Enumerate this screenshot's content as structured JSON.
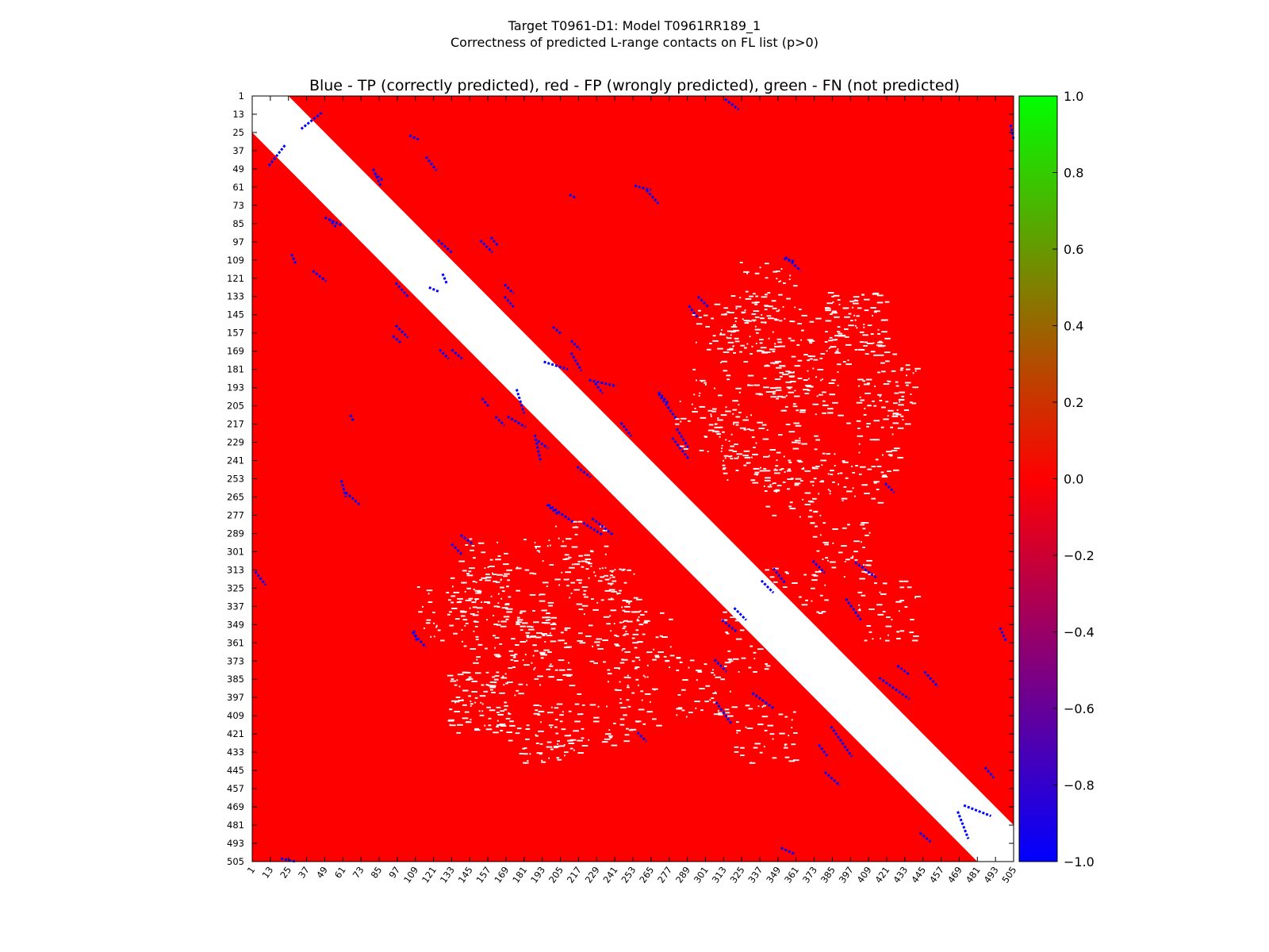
{
  "figure": {
    "title_line1": "Target T0961-D1: Model T0961RR189_1",
    "title_line2": "Correctness of predicted L-range contacts on FL list (p>0)"
  },
  "chart_data": {
    "type": "heatmap",
    "title": "Blue - TP (correctly predicted), red - FP (wrongly predicted), green - FN (not predicted)",
    "xlabel": "",
    "ylabel": "",
    "n_residues": 505,
    "tick_labels": [
      1,
      13,
      25,
      37,
      49,
      61,
      73,
      85,
      97,
      109,
      121,
      133,
      145,
      157,
      169,
      181,
      193,
      205,
      217,
      229,
      241,
      253,
      265,
      277,
      289,
      301,
      313,
      325,
      337,
      349,
      361,
      373,
      385,
      397,
      409,
      421,
      433,
      445,
      457,
      469,
      481,
      493,
      505
    ],
    "xlim": [
      1,
      505
    ],
    "ylim": [
      1,
      505
    ],
    "y_axis_inverted": true,
    "excluded_diagonal_band": 24,
    "value_meaning": {
      "-1": "TP (correctly predicted)",
      "0": "FP (wrongly predicted)",
      "1": "FN (not predicted)"
    },
    "colors": {
      "tp": "#0000ff",
      "fp": "#ff0000",
      "fn": "#00ff00",
      "empty": "#ffffff"
    },
    "background_value": 0,
    "colorbar": {
      "range": [
        -1.0,
        1.0
      ],
      "ticks": [
        "1.0",
        "0.8",
        "0.6",
        "0.4",
        "0.2",
        "0.0",
        "−0.2",
        "−0.4",
        "−0.6",
        "−0.8",
        "−1.0"
      ],
      "colormap": [
        "#0000ff",
        "#ff0000",
        "#00ff00"
      ]
    },
    "tp_segments": [
      [
        12,
        47,
        23,
        33
      ],
      [
        27,
        105,
        30,
        112
      ],
      [
        41,
        116,
        50,
        123
      ],
      [
        49,
        81,
        60,
        86
      ],
      [
        60,
        254,
        63,
        265
      ],
      [
        66,
        211,
        68,
        215
      ],
      [
        82,
        52,
        88,
        57
      ],
      [
        94,
        159,
        100,
        164
      ],
      [
        108,
        353,
        110,
        360
      ],
      [
        118,
        127,
        125,
        130
      ],
      [
        124,
        96,
        133,
        104
      ],
      [
        133,
        168,
        140,
        174
      ],
      [
        139,
        290,
        147,
        296
      ],
      [
        152,
        96,
        160,
        104
      ],
      [
        162,
        212,
        168,
        218
      ],
      [
        168,
        125,
        174,
        131
      ],
      [
        176,
        194,
        181,
        210
      ],
      [
        188,
        224,
        192,
        242
      ],
      [
        196,
        270,
        204,
        277
      ],
      [
        200,
        153,
        206,
        158
      ],
      [
        212,
        170,
        219,
        182
      ],
      [
        226,
        279,
        240,
        290
      ],
      [
        228,
        190,
        233,
        197
      ],
      [
        245,
        216,
        252,
        225
      ],
      [
        262,
        63,
        270,
        72
      ],
      [
        270,
        197,
        282,
        214
      ],
      [
        282,
        220,
        290,
        233
      ],
      [
        296,
        133,
        303,
        140
      ],
      [
        308,
        400,
        318,
        414
      ],
      [
        314,
        3,
        323,
        10
      ],
      [
        320,
        338,
        328,
        346
      ],
      [
        346,
        312,
        354,
        322
      ],
      [
        354,
        107,
        364,
        116
      ],
      [
        372,
        307,
        380,
        315
      ],
      [
        384,
        416,
        398,
        436
      ],
      [
        394,
        332,
        404,
        346
      ],
      [
        420,
        256,
        426,
        262
      ],
      [
        428,
        376,
        436,
        382
      ],
      [
        446,
        380,
        455,
        390
      ],
      [
        468,
        472,
        475,
        490
      ],
      [
        486,
        443,
        492,
        450
      ],
      [
        496,
        351,
        500,
        360
      ],
      [
        503,
        20,
        505,
        30
      ]
    ],
    "fn_points": []
  }
}
